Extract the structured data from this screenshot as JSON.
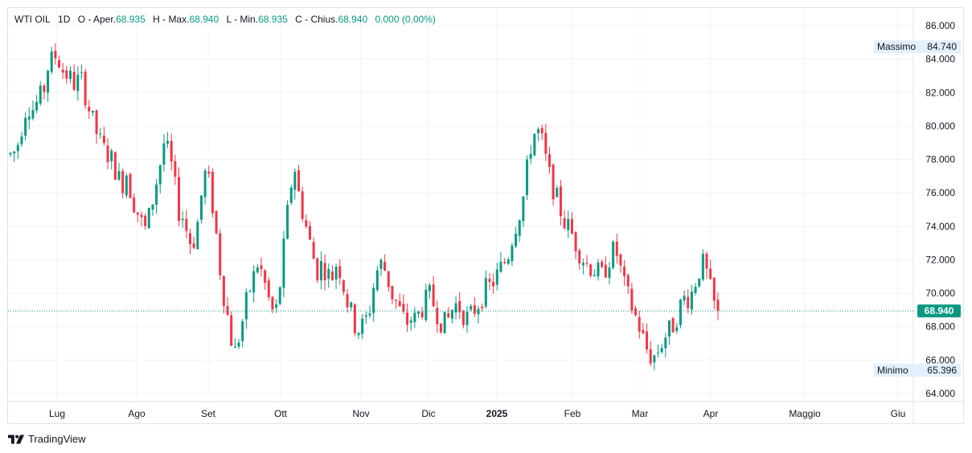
{
  "legend": {
    "symbol": "WTI OIL",
    "interval": "1D",
    "open_label": "O - Aper.",
    "open": "68.935",
    "high_label": "H - Max.",
    "high": "68.940",
    "low_label": "L - Min.",
    "low": "68.935",
    "close_label": "C - Chius.",
    "close": "68.940",
    "change": "0.000",
    "change_pct": "(0.00%)"
  },
  "branding": {
    "name": "TradingView"
  },
  "colors": {
    "up": "#089981",
    "down": "#f23645",
    "price_line": "#089981",
    "grid": "#f0f3fa",
    "label_bg": "#e3effd"
  },
  "chart_data": {
    "type": "candlestick",
    "title": "",
    "ylim": [
      63.6,
      86.6
    ],
    "y_ticks": [
      "64.000",
      "66.000",
      "68.000",
      "70.000",
      "72.000",
      "74.000",
      "76.000",
      "78.000",
      "80.000",
      "82.000",
      "84.000",
      "86.000"
    ],
    "x_ticks": [
      {
        "label": "Lug",
        "bold": false
      },
      {
        "label": "Ago",
        "bold": false
      },
      {
        "label": "Set",
        "bold": false
      },
      {
        "label": "Ott",
        "bold": false
      },
      {
        "label": "Nov",
        "bold": false
      },
      {
        "label": "Dic",
        "bold": false
      },
      {
        "label": "2025",
        "bold": true
      },
      {
        "label": "Feb",
        "bold": false
      },
      {
        "label": "Mar",
        "bold": false
      },
      {
        "label": "Apr",
        "bold": false
      },
      {
        "label": "Maggio",
        "bold": false
      },
      {
        "label": "Giu",
        "bold": false
      }
    ],
    "last_price": {
      "value": 68.94,
      "label": "68.940"
    },
    "max_marker": {
      "label": "Massimo",
      "value": 84.74,
      "value_label": "84.740"
    },
    "min_marker": {
      "label": "Minimo",
      "value": 65.396,
      "value_label": "65.396"
    },
    "series_path_y": [
      78.3,
      78.5,
      79.3,
      80.9,
      81.2,
      81.0,
      81.6,
      81.9,
      83.5,
      84.0,
      84.3,
      83.4,
      83.1,
      82.8,
      82.4,
      83.0,
      82.0,
      80.9,
      80.0,
      79.2,
      78.6,
      78.3,
      77.9,
      77.0,
      76.5,
      77.3,
      75.8,
      75.1,
      74.3,
      73.8,
      74.8,
      76.2,
      77.5,
      79.0,
      78.3,
      77.1,
      75.0,
      74.6,
      73.6,
      72.8,
      73.8,
      75.8,
      77.4,
      76.1,
      74.1,
      71.5,
      69.6,
      68.1,
      66.2,
      67.3,
      68.5,
      69.9,
      70.7,
      71.8,
      71.2,
      70.2,
      69.0,
      68.8,
      70.7,
      73.5,
      76.0,
      77.7,
      75.8,
      74.6,
      73.4,
      72.2,
      71.3,
      71.8,
      71.2,
      70.9,
      71.8,
      71.3,
      69.8,
      69.0,
      68.1,
      67.8,
      68.2,
      68.8,
      70.4,
      71.6,
      71.8,
      70.9,
      69.9,
      69.4,
      68.7,
      68.2,
      68.5,
      68.4,
      68.9,
      69.4,
      69.9,
      69.3,
      68.6,
      68.1,
      68.4,
      69.1,
      69.4,
      68.9,
      68.5,
      68.7,
      69.2,
      69.6,
      70.2,
      70.4,
      70.8,
      71.3,
      71.8,
      72.4,
      73.6,
      74.5,
      75.4,
      77.4,
      79.2,
      79.8,
      79.3,
      78.0,
      76.8,
      76.0,
      75.1,
      74.3,
      73.9,
      73.3,
      72.6,
      72.1,
      71.7,
      71.5,
      71.3,
      71.0,
      71.6,
      72.3,
      72.7,
      71.5,
      70.3,
      69.6,
      68.8,
      68.1,
      67.2,
      66.4,
      66.1,
      66.5,
      67.1,
      67.6,
      67.9,
      68.5,
      69.3,
      69.8,
      69.7,
      70.6,
      71.4,
      71.8,
      70.7,
      69.4,
      68.94
    ]
  }
}
